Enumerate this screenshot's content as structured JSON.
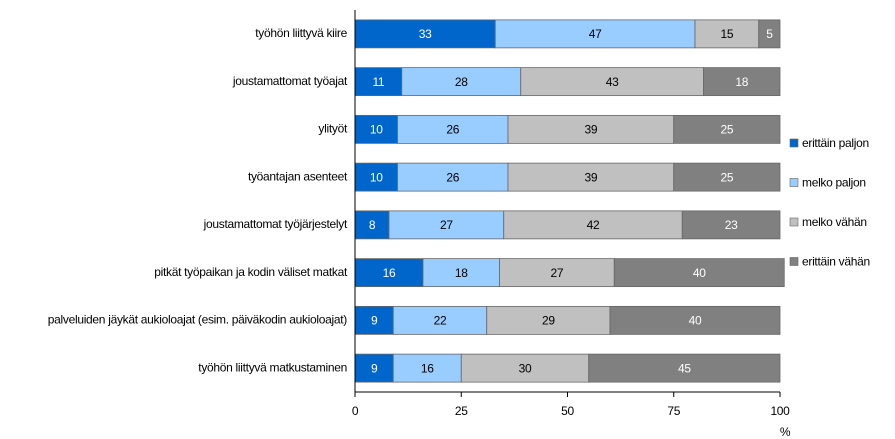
{
  "chart_data": {
    "type": "stacked_barh",
    "categories": [
      "työhön liittyvä kiire",
      "joustamattomat työajat",
      "ylityöt",
      "työantajan asenteet",
      "joustamattomat työjärjestelyt",
      "pitkät työpaikan ja kodin väliset matkat",
      "palveluiden jäykät aukioloajat (esim. päiväkodin aukioloajat)",
      "työhön liittyvä matkustaminen"
    ],
    "series": [
      {
        "name": "erittäin paljon",
        "color": "#0066cc",
        "values": [
          33,
          11,
          10,
          10,
          8,
          16,
          9,
          9
        ]
      },
      {
        "name": "melko paljon",
        "color": "#99ccff",
        "values": [
          47,
          28,
          26,
          26,
          27,
          18,
          22,
          16
        ]
      },
      {
        "name": "melko vähän",
        "color": "#c0c0c0",
        "values": [
          15,
          43,
          39,
          39,
          42,
          27,
          29,
          30
        ]
      },
      {
        "name": "erittäin vähän",
        "color": "#808080",
        "values": [
          5,
          18,
          25,
          25,
          23,
          40,
          40,
          45
        ]
      }
    ],
    "x_label": "%",
    "xlim": [
      0,
      100
    ],
    "xticks": [
      0,
      25,
      50,
      75,
      100
    ],
    "legend": "right"
  }
}
